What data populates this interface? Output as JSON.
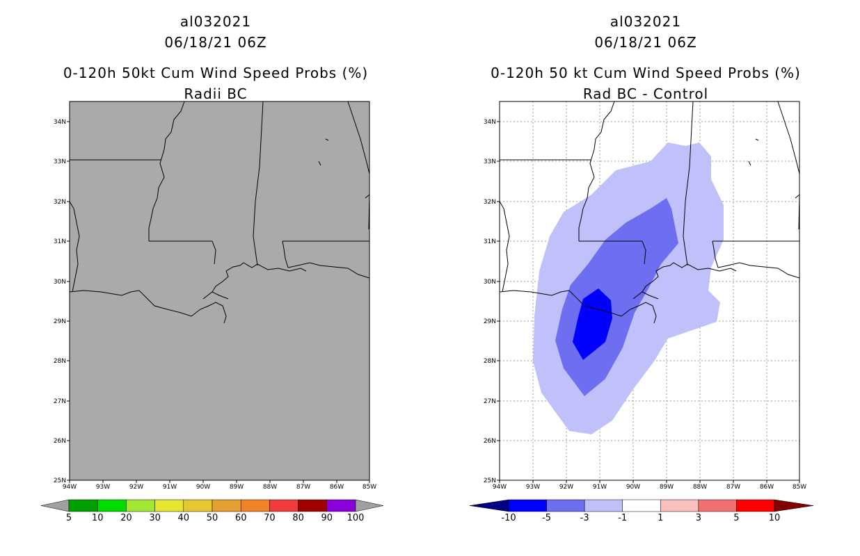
{
  "left_panel": {
    "storm_id": "al032021",
    "datetime": "06/18/21 06Z",
    "title": "0-120h 50kt Cum Wind Speed Probs (%)",
    "subtitle": "Radii BC",
    "lat_labels": [
      "34N",
      "33N",
      "32N",
      "31N",
      "30N",
      "29N",
      "28N",
      "27N",
      "26N",
      "25N"
    ],
    "lon_labels": [
      "94W",
      "93W",
      "92W",
      "91W",
      "90W",
      "89W",
      "88W",
      "87W",
      "86W",
      "85W"
    ],
    "colorbar": {
      "labels": [
        "5",
        "10",
        "20",
        "30",
        "40",
        "50",
        "60",
        "70",
        "80",
        "90",
        "100"
      ],
      "colors": [
        "#a0a0a0",
        "#00a000",
        "#00dc00",
        "#a0e632",
        "#e6e632",
        "#e6c832",
        "#e6a032",
        "#f08228",
        "#f03c3c",
        "#a00000",
        "#8c00dc",
        "#a0a0a0"
      ]
    }
  },
  "right_panel": {
    "storm_id": "al032021",
    "datetime": "06/18/21 06Z",
    "title": "0-120h 50 kt Cum Wind Speed Probs (%)",
    "subtitle": "Rad BC - Control",
    "lat_labels": [
      "34N",
      "33N",
      "32N",
      "31N",
      "30N",
      "29N",
      "28N",
      "27N",
      "26N",
      "25N"
    ],
    "lon_labels": [
      "94W",
      "93W",
      "92W",
      "91W",
      "90W",
      "89W",
      "88W",
      "87W",
      "86W",
      "85W"
    ],
    "colorbar": {
      "labels": [
        "-10",
        "-5",
        "-3",
        "-1",
        "1",
        "3",
        "5",
        "10"
      ],
      "colors": [
        "#000082",
        "#0000ff",
        "#6e6ef0",
        "#c0c0fa",
        "#ffffff",
        "#fac0c0",
        "#f07070",
        "#ff0000",
        "#820000"
      ]
    }
  },
  "colors": {
    "left_map_bg": "#aaaaaa",
    "diff_light": "#c0c0fa",
    "diff_medium": "#6e6ef0",
    "diff_dark": "#0000ff"
  }
}
